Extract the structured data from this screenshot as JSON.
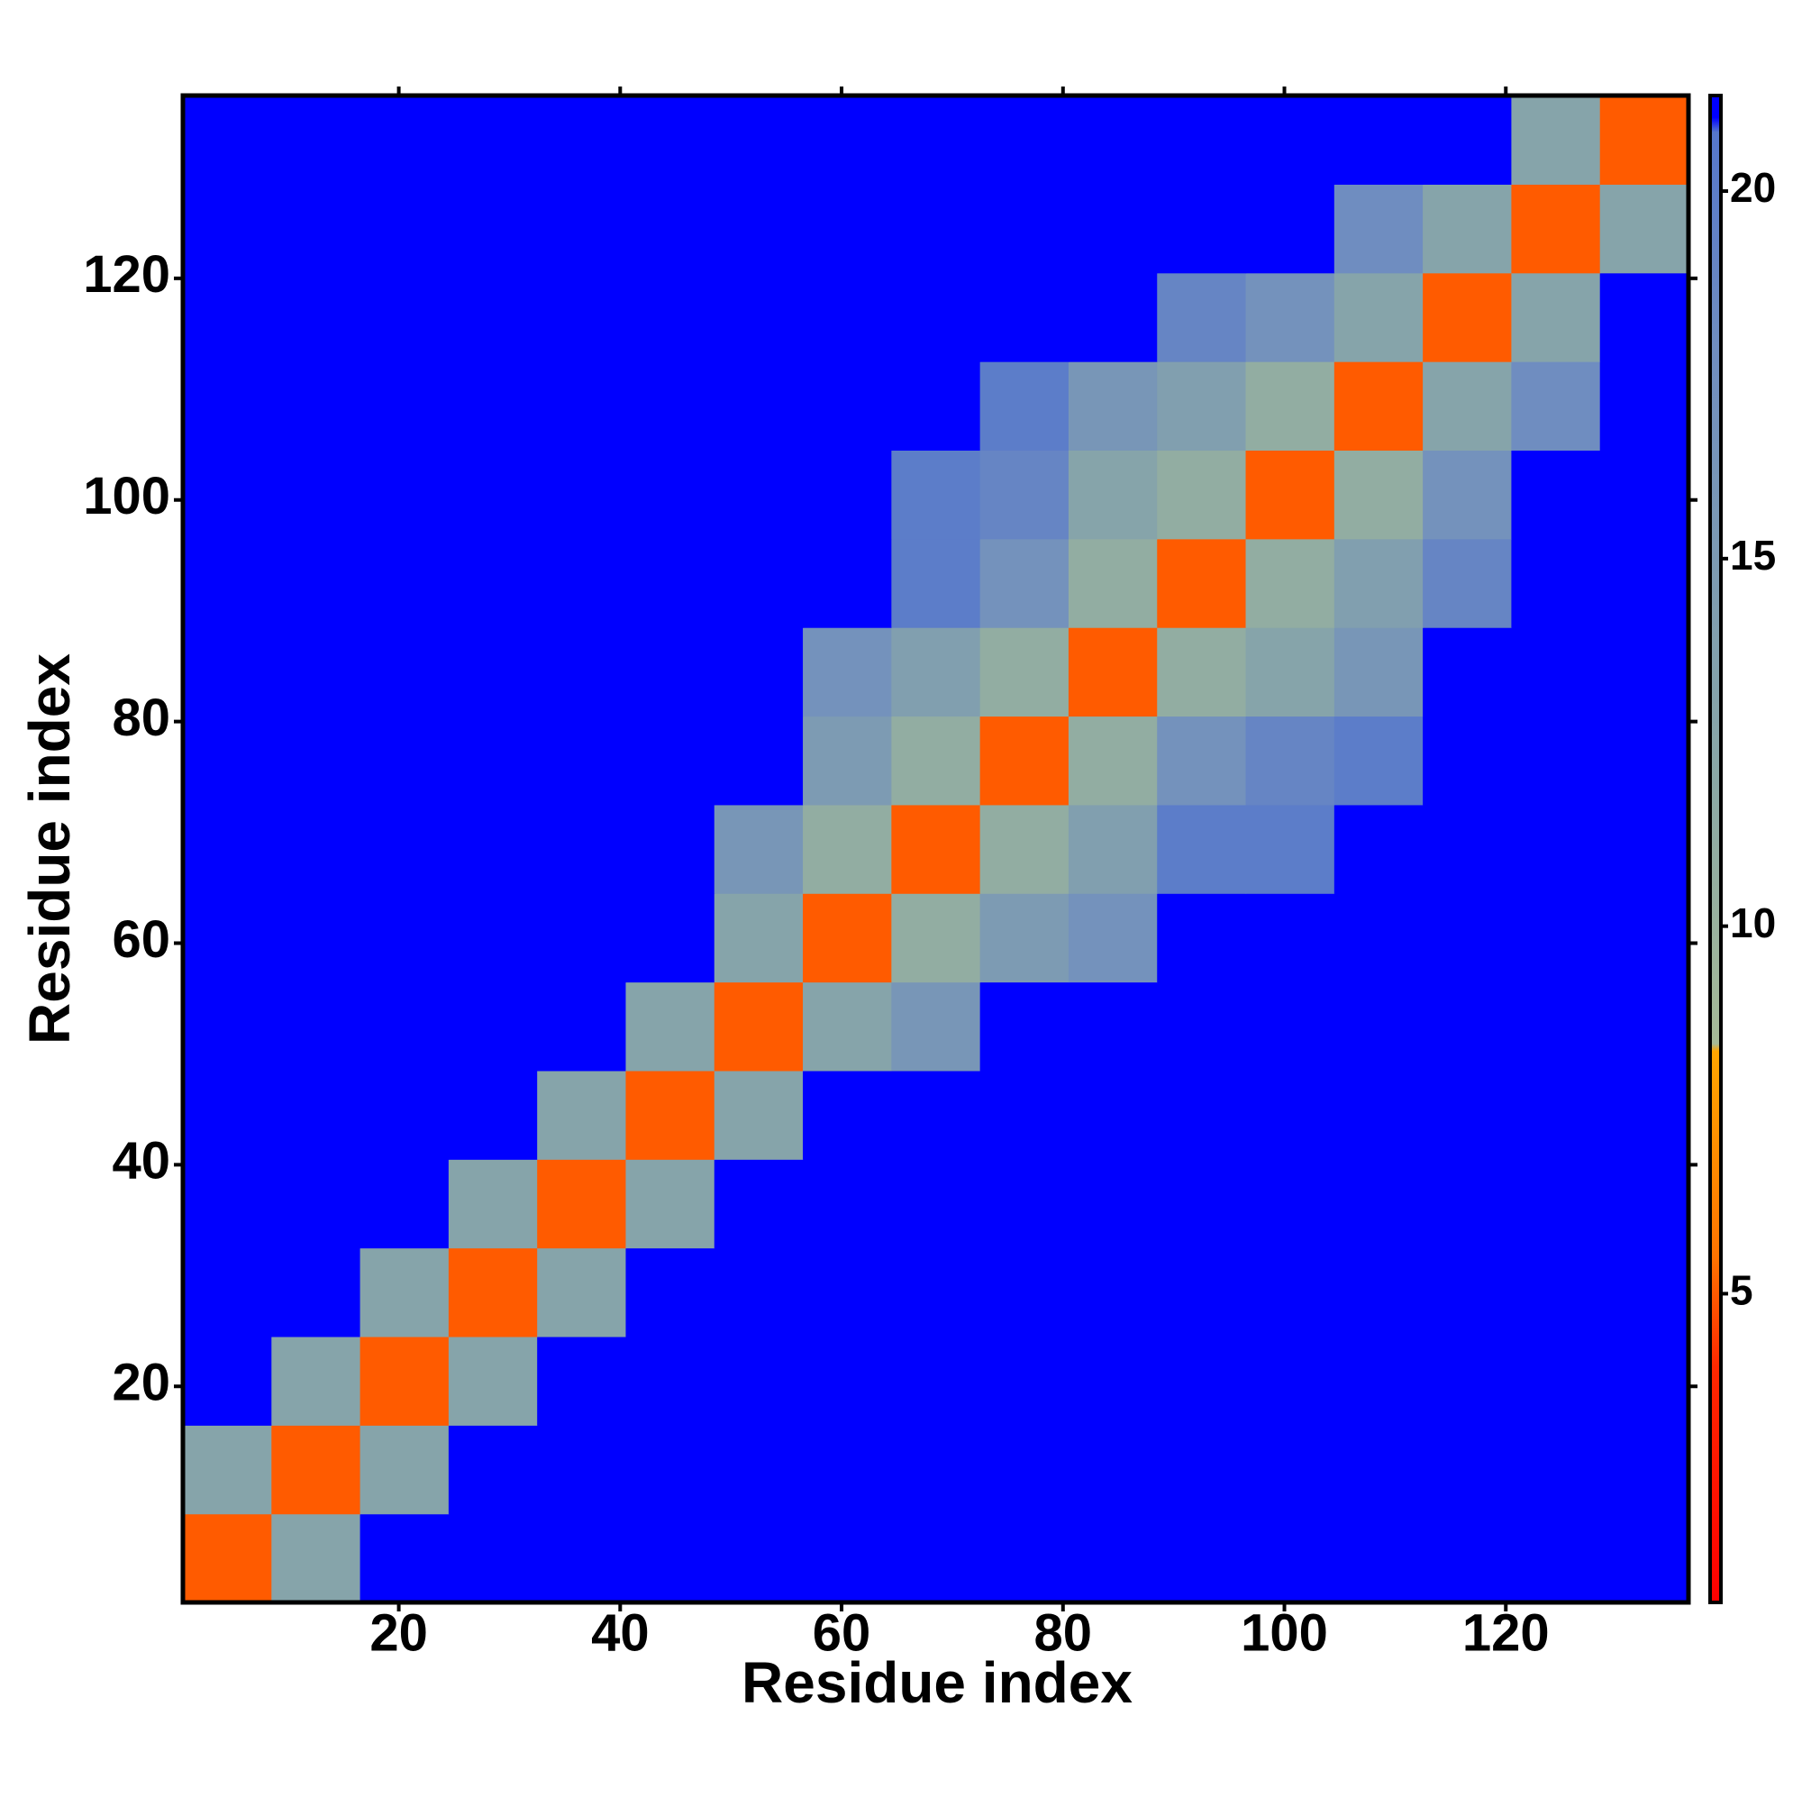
{
  "chart_data": {
    "type": "heatmap",
    "xlabel": "Residue index",
    "ylabel": "Residue index",
    "xlim": [
      0.5,
      136.5
    ],
    "ylim": [
      0.5,
      136.5
    ],
    "xticks": [
      20,
      40,
      60,
      80,
      100,
      120
    ],
    "yticks": [
      20,
      40,
      60,
      80,
      100,
      120
    ],
    "x_bins": [
      0.5,
      8.5,
      16.5,
      24.5,
      32.5,
      40.5,
      48.5,
      56.5,
      64.5,
      72.5,
      80.5,
      88.5,
      96.5,
      104.5,
      112.5,
      120.5,
      128.5,
      136.5
    ],
    "y_bins": [
      0.5,
      8.5,
      16.5,
      24.5,
      32.5,
      40.5,
      48.5,
      56.5,
      64.5,
      72.5,
      80.5,
      88.5,
      96.5,
      104.5,
      112.5,
      120.5,
      128.5,
      136.5
    ],
    "z": [
      [
        5,
        13,
        21,
        21,
        21,
        21,
        21,
        21,
        21,
        21,
        21,
        21,
        21,
        21,
        21,
        21,
        21
      ],
      [
        13,
        5,
        13,
        21,
        21,
        21,
        21,
        21,
        21,
        21,
        21,
        21,
        21,
        21,
        21,
        21,
        21
      ],
      [
        21,
        13,
        5,
        13,
        21,
        21,
        21,
        21,
        21,
        21,
        21,
        21,
        21,
        21,
        21,
        21,
        21
      ],
      [
        21,
        21,
        13,
        5,
        13,
        21,
        21,
        21,
        21,
        21,
        21,
        21,
        21,
        21,
        21,
        21,
        21
      ],
      [
        21,
        21,
        21,
        13,
        5,
        13,
        21,
        21,
        21,
        21,
        21,
        21,
        21,
        21,
        21,
        21,
        21
      ],
      [
        21,
        21,
        21,
        21,
        13,
        5,
        13,
        21,
        21,
        21,
        21,
        21,
        21,
        21,
        21,
        21,
        21
      ],
      [
        21,
        21,
        21,
        21,
        21,
        13,
        5,
        13,
        16,
        21,
        21,
        21,
        21,
        21,
        21,
        21,
        21
      ],
      [
        21,
        21,
        21,
        21,
        21,
        21,
        13,
        5,
        11,
        15,
        17,
        21,
        21,
        21,
        21,
        21,
        21
      ],
      [
        21,
        21,
        21,
        21,
        21,
        21,
        16,
        11,
        5,
        11,
        14,
        20,
        20,
        21,
        21,
        21,
        21
      ],
      [
        21,
        21,
        21,
        21,
        21,
        21,
        21,
        15,
        11,
        5,
        11,
        17,
        19,
        20,
        21,
        21,
        21
      ],
      [
        21,
        21,
        21,
        21,
        21,
        21,
        21,
        17,
        14,
        11,
        5,
        11,
        13,
        16,
        21,
        21,
        21
      ],
      [
        21,
        21,
        21,
        21,
        21,
        21,
        21,
        21,
        20,
        17,
        11,
        5,
        11,
        14,
        19,
        21,
        21
      ],
      [
        21,
        21,
        21,
        21,
        21,
        21,
        21,
        21,
        20,
        19,
        13,
        11,
        5,
        11,
        17,
        21,
        21
      ],
      [
        21,
        21,
        21,
        21,
        21,
        21,
        21,
        21,
        21,
        20,
        16,
        14,
        11,
        5,
        13,
        18,
        21
      ],
      [
        21,
        21,
        21,
        21,
        21,
        21,
        21,
        21,
        21,
        21,
        21,
        19,
        17,
        13,
        5,
        13,
        21
      ],
      [
        21,
        21,
        21,
        21,
        21,
        21,
        21,
        21,
        21,
        21,
        21,
        21,
        21,
        18,
        13,
        5,
        13
      ],
      [
        21,
        21,
        21,
        21,
        21,
        21,
        21,
        21,
        21,
        21,
        21,
        21,
        21,
        21,
        21,
        13,
        5
      ]
    ],
    "colorscale": [
      [
        0.8,
        "#ff0000"
      ],
      [
        4,
        "#ff2800"
      ],
      [
        5.5,
        "#ff7400"
      ],
      [
        8.3,
        "#ffa500"
      ],
      [
        8.4,
        "#a6ba98"
      ],
      [
        12,
        "#8aa8a6"
      ],
      [
        18,
        "#6f8dc0"
      ],
      [
        20.8,
        "#5577cc"
      ],
      [
        21,
        "#0000ff"
      ]
    ],
    "colorbar": {
      "lim": [
        0.8,
        21.3
      ],
      "ticks": [
        5,
        10,
        15,
        20
      ]
    }
  }
}
